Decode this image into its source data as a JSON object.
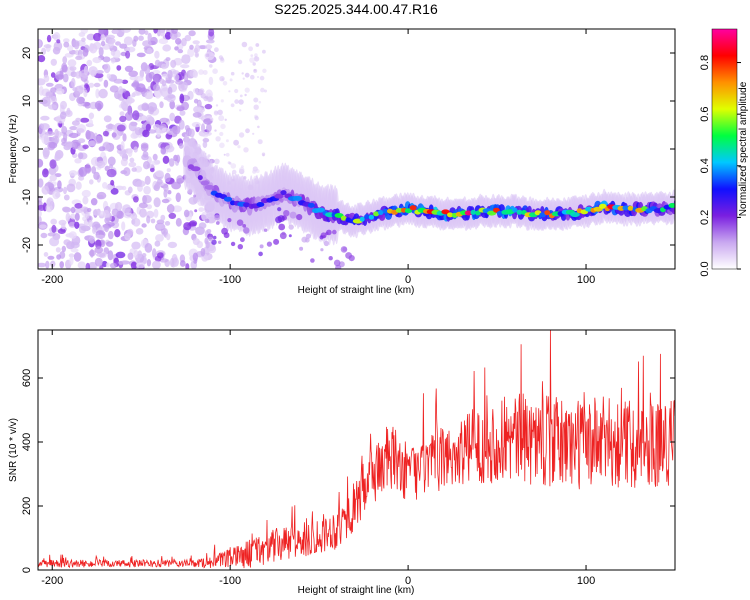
{
  "title": "S225.2025.344.00.47.R16",
  "chart_data": [
    {
      "type": "heatmap",
      "name": "spectrogram",
      "xlabel": "Height of straight line (km)",
      "ylabel": "Frequency (Hz)",
      "xlim": [
        -208,
        150
      ],
      "ylim": [
        -25,
        25
      ],
      "xticks": [
        -200,
        -100,
        0,
        100
      ],
      "yticks": [
        -20,
        -10,
        0,
        10,
        20
      ],
      "colorbar": {
        "label": "Normalized spectral amplitude",
        "range": [
          0,
          0.93
        ],
        "ticks": [
          "0.0",
          "0.2",
          "0.4",
          "0.6",
          "0.8"
        ],
        "colors": [
          "#ffffff",
          "#c9a8f0",
          "#7a1fe0",
          "#1010ff",
          "#00c8ff",
          "#00ff40",
          "#e0ff00",
          "#ff9000",
          "#ff0000",
          "#ff00a0"
        ]
      },
      "ridge": {
        "x": [
          -130,
          -120,
          -110,
          -100,
          -90,
          -80,
          -70,
          -60,
          -50,
          -40,
          -30,
          -20,
          -10,
          0,
          10,
          20,
          30,
          40,
          50,
          60,
          70,
          80,
          90,
          100,
          110,
          120,
          130,
          140,
          150
        ],
        "freq": [
          -1,
          -4,
          -9,
          -11,
          -12,
          -11,
          -9,
          -11,
          -13,
          -14,
          -15,
          -14,
          -13,
          -12.5,
          -13,
          -13.5,
          -13.5,
          -13,
          -13,
          -13,
          -13.5,
          -13.5,
          -13.5,
          -13,
          -12,
          -12.5,
          -12.5,
          -12.5,
          -12
        ],
        "amplitude": [
          0.1,
          0.25,
          0.3,
          0.35,
          0.35,
          0.3,
          0.3,
          0.35,
          0.45,
          0.5,
          0.55,
          0.65,
          0.7,
          0.7,
          0.75,
          0.85,
          0.8,
          0.7,
          0.7,
          0.75,
          0.65,
          0.65,
          0.6,
          0.6,
          0.8,
          0.6,
          0.6,
          0.55,
          0.5
        ]
      },
      "noise_region_x": [
        -208,
        -120
      ]
    },
    {
      "type": "line",
      "name": "snr",
      "xlabel": "Height of straight line (km)",
      "ylabel": "SNR (10 * v/v)",
      "xlim": [
        -208,
        150
      ],
      "ylim": [
        0,
        750
      ],
      "xticks": [
        -200,
        -100,
        0,
        100
      ],
      "yticks": [
        0,
        200,
        400,
        600
      ],
      "color": "#ee2222",
      "trend": {
        "x": [
          -208,
          -180,
          -150,
          -120,
          -110,
          -100,
          -90,
          -80,
          -70,
          -60,
          -50,
          -40,
          -35,
          -30,
          -25,
          -20,
          -15,
          -10,
          -5,
          0,
          10,
          20,
          30,
          40,
          50,
          60,
          70,
          80,
          90,
          100,
          110,
          120,
          130,
          140,
          150
        ],
        "y": [
          20,
          20,
          20,
          20,
          25,
          35,
          50,
          70,
          80,
          90,
          110,
          130,
          160,
          200,
          250,
          300,
          330,
          350,
          330,
          300,
          320,
          350,
          370,
          390,
          400,
          410,
          410,
          400,
          395,
          395,
          400,
          395,
          395,
          400,
          400
        ],
        "spread": [
          12,
          12,
          12,
          12,
          20,
          30,
          45,
          55,
          55,
          55,
          60,
          65,
          70,
          80,
          90,
          100,
          110,
          110,
          100,
          90,
          90,
          100,
          110,
          120,
          130,
          140,
          145,
          145,
          145,
          145,
          145,
          140,
          140,
          140,
          140
        ]
      }
    }
  ]
}
